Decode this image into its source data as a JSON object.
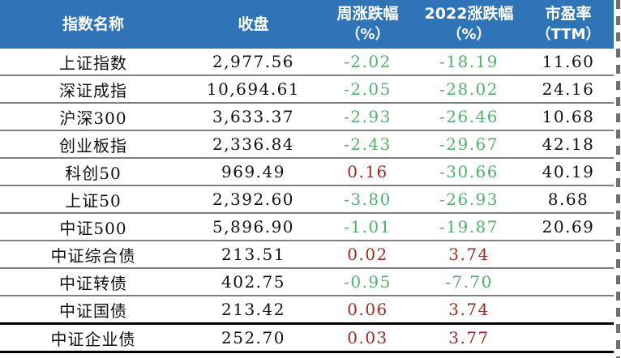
{
  "table": {
    "columns": [
      {
        "label": "指数名称",
        "sub": ""
      },
      {
        "label": "收盘",
        "sub": ""
      },
      {
        "label": "周涨跌幅",
        "sub": "（%）"
      },
      {
        "label": "2022涨跌幅",
        "sub": "（%）"
      },
      {
        "label": "市盈率",
        "sub": "（TTM）"
      }
    ],
    "rows": [
      {
        "name": "上证指数",
        "close": "2,977.56",
        "week": "-2.02",
        "ytd": "-18.19",
        "pe": "11.60"
      },
      {
        "name": "深证成指",
        "close": "10,694.61",
        "week": "-2.05",
        "ytd": "-28.02",
        "pe": "24.16"
      },
      {
        "name": "沪深300",
        "close": "3,633.37",
        "week": "-2.93",
        "ytd": "-26.46",
        "pe": "10.68"
      },
      {
        "name": "创业板指",
        "close": "2,336.84",
        "week": "-2.43",
        "ytd": "-29.67",
        "pe": "42.18"
      },
      {
        "name": "科创50",
        "close": "969.49",
        "week": "0.16",
        "ytd": "-30.66",
        "pe": "40.19"
      },
      {
        "name": "上证50",
        "close": "2,392.60",
        "week": "-3.80",
        "ytd": "-26.93",
        "pe": "8.68"
      },
      {
        "name": "中证500",
        "close": "5,896.90",
        "week": "-1.01",
        "ytd": "-19.87",
        "pe": "20.69"
      },
      {
        "name": "中证综合债",
        "close": "213.51",
        "week": "0.02",
        "ytd": "3.74",
        "pe": ""
      },
      {
        "name": "中证转债",
        "close": "402.75",
        "week": "-0.95",
        "ytd": "-7.70",
        "pe": ""
      },
      {
        "name": "中证国债",
        "close": "213.42",
        "week": "0.06",
        "ytd": "3.74",
        "pe": ""
      },
      {
        "name": "中证企业债",
        "close": "252.70",
        "week": "0.03",
        "ytd": "3.77",
        "pe": ""
      }
    ]
  },
  "colors": {
    "header_bg": "#2e74b6",
    "header_text": "#ffffff",
    "positive": "#9e2a23",
    "negative": "#52b26c",
    "divider": "#7f7f7f",
    "strong_border": "#000000"
  }
}
